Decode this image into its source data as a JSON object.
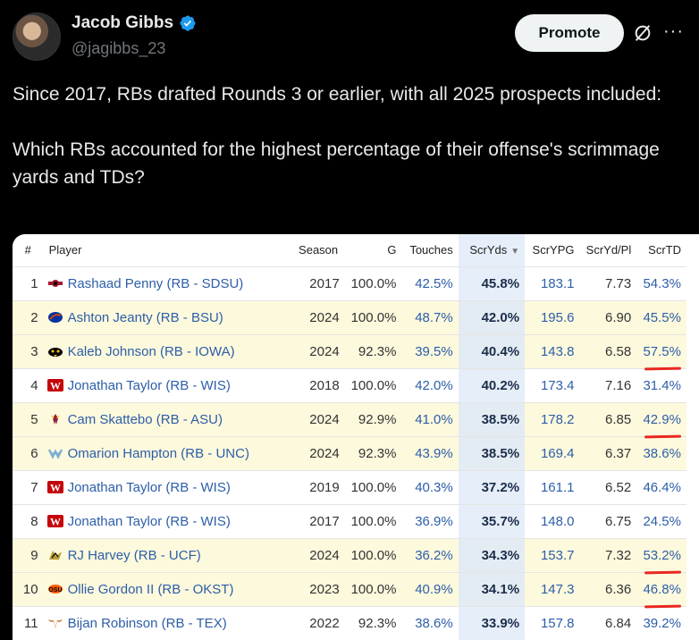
{
  "author": {
    "name": "Jacob Gibbs",
    "handle": "@jagibbs_23",
    "verified": true,
    "promote_label": "Promote",
    "more_label": "···"
  },
  "tweet": {
    "line1": "Since 2017, RBs drafted Rounds 3 or earlier, with all 2025 prospects included:",
    "line2": "Which RBs accounted for the highest percentage of their offense's scrimmage yards and TDs?"
  },
  "colors": {
    "accent_link": "#2d5ea8",
    "highlight_row": "#fdf9dd",
    "sorted_col": "#e6eef9",
    "annotation": "#e8281f"
  },
  "table": {
    "headers": {
      "rank": "#",
      "player": "Player",
      "season": "Season",
      "g": "G",
      "touches": "Touches",
      "scryds": "ScrYds",
      "scrypg": "ScrYPG",
      "scrydpl": "ScrYd/Pl",
      "scrtd": "ScrTD"
    },
    "rows": [
      {
        "rank": "1",
        "player": "Rashaad Penny (RB - SDSU)",
        "logo": "sdsu-logo-icon",
        "season": "2017",
        "g": "100.0%",
        "touches": "42.5%",
        "scryds": "45.8%",
        "scrypg": "183.1",
        "scrydpl": "7.73",
        "scrtd": "54.3%",
        "highlight": false,
        "marked": false
      },
      {
        "rank": "2",
        "player": "Ashton Jeanty (RB - BSU)",
        "logo": "bsu-logo-icon",
        "season": "2024",
        "g": "100.0%",
        "touches": "48.7%",
        "scryds": "42.0%",
        "scrypg": "195.6",
        "scrydpl": "6.90",
        "scrtd": "45.5%",
        "highlight": true,
        "marked": false
      },
      {
        "rank": "3",
        "player": "Kaleb Johnson (RB - IOWA)",
        "logo": "iowa-logo-icon",
        "season": "2024",
        "g": "92.3%",
        "touches": "39.5%",
        "scryds": "40.4%",
        "scrypg": "143.8",
        "scrydpl": "6.58",
        "scrtd": "57.5%",
        "highlight": true,
        "marked": true
      },
      {
        "rank": "4",
        "player": "Jonathan Taylor (RB - WIS)",
        "logo": "wis-logo-icon",
        "season": "2018",
        "g": "100.0%",
        "touches": "42.0%",
        "scryds": "40.2%",
        "scrypg": "173.4",
        "scrydpl": "7.16",
        "scrtd": "31.4%",
        "highlight": false,
        "marked": false
      },
      {
        "rank": "5",
        "player": "Cam Skattebo (RB - ASU)",
        "logo": "asu-logo-icon",
        "season": "2024",
        "g": "92.9%",
        "touches": "41.0%",
        "scryds": "38.5%",
        "scrypg": "178.2",
        "scrydpl": "6.85",
        "scrtd": "42.9%",
        "highlight": true,
        "marked": true
      },
      {
        "rank": "6",
        "player": "Omarion Hampton (RB - UNC)",
        "logo": "unc-logo-icon",
        "season": "2024",
        "g": "92.3%",
        "touches": "43.9%",
        "scryds": "38.5%",
        "scrypg": "169.4",
        "scrydpl": "6.37",
        "scrtd": "38.6%",
        "highlight": true,
        "marked": false
      },
      {
        "rank": "7",
        "player": "Jonathan Taylor (RB - WIS)",
        "logo": "wis-logo-icon",
        "season": "2019",
        "g": "100.0%",
        "touches": "40.3%",
        "scryds": "37.2%",
        "scrypg": "161.1",
        "scrydpl": "6.52",
        "scrtd": "46.4%",
        "highlight": false,
        "marked": false
      },
      {
        "rank": "8",
        "player": "Jonathan Taylor (RB - WIS)",
        "logo": "wis-logo-icon",
        "season": "2017",
        "g": "100.0%",
        "touches": "36.9%",
        "scryds": "35.7%",
        "scrypg": "148.0",
        "scrydpl": "6.75",
        "scrtd": "24.5%",
        "highlight": false,
        "marked": false
      },
      {
        "rank": "9",
        "player": "RJ Harvey (RB - UCF)",
        "logo": "ucf-logo-icon",
        "season": "2024",
        "g": "100.0%",
        "touches": "36.2%",
        "scryds": "34.3%",
        "scrypg": "153.7",
        "scrydpl": "7.32",
        "scrtd": "53.2%",
        "highlight": true,
        "marked": true
      },
      {
        "rank": "10",
        "player": "Ollie Gordon II (RB - OKST)",
        "logo": "okst-logo-icon",
        "season": "2023",
        "g": "100.0%",
        "touches": "40.9%",
        "scryds": "34.1%",
        "scrypg": "147.3",
        "scrydpl": "6.36",
        "scrtd": "46.8%",
        "highlight": true,
        "marked": true
      },
      {
        "rank": "11",
        "player": "Bijan Robinson (RB - TEX)",
        "logo": "tex-logo-icon",
        "season": "2022",
        "g": "92.3%",
        "touches": "38.6%",
        "scryds": "33.9%",
        "scrypg": "157.8",
        "scrydpl": "6.84",
        "scrtd": "39.2%",
        "highlight": false,
        "marked": false
      }
    ]
  }
}
